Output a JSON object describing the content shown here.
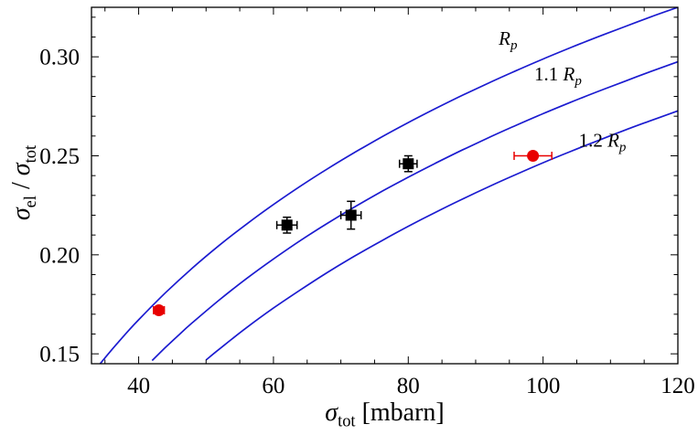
{
  "chart_data": {
    "type": "line",
    "title": "",
    "xlabel": "σ_tot [mbarn]",
    "ylabel": "σ_el / σ_tot",
    "axis_labels": {
      "x": {
        "sigma": "σ",
        "sub": "tot",
        "unit": " [mbarn]"
      },
      "y": {
        "sigma1": "σ",
        "sub1": "el",
        "sep": " / ",
        "sigma2": "σ",
        "sub2": "tot"
      }
    },
    "xlim": [
      33,
      120
    ],
    "ylim": [
      0.145,
      0.325
    ],
    "xticks": {
      "major": [
        40,
        60,
        80,
        100,
        120
      ],
      "labels": [
        "40",
        "60",
        "80",
        "100",
        "120"
      ],
      "minor_step": 5
    },
    "yticks": {
      "major": [
        0.15,
        0.2,
        0.25,
        0.3
      ],
      "labels": [
        "0.15",
        "0.20",
        "0.25",
        "0.30"
      ],
      "minor_step": 0.01
    },
    "frame": true,
    "grid": false,
    "legend_position": "none",
    "colors": {
      "curve": "#1b1bd0",
      "square_points": "#000000",
      "circle_points": "#e80000",
      "frame": "#000000",
      "background": "#ffffff"
    },
    "curves": [
      {
        "name": "R_p",
        "label": {
          "prefix": "",
          "base": "R",
          "sub": "p"
        },
        "label_pos": [
          94.8,
          0.306
        ],
        "points": [
          [
            34,
            0.1438
          ],
          [
            36,
            0.152
          ],
          [
            38,
            0.1598
          ],
          [
            40,
            0.1672
          ],
          [
            44,
            0.1809
          ],
          [
            48,
            0.1934
          ],
          [
            52,
            0.2049
          ],
          [
            56,
            0.2155
          ],
          [
            60,
            0.2254
          ],
          [
            64,
            0.2347
          ],
          [
            68,
            0.2434
          ],
          [
            72,
            0.2516
          ],
          [
            76,
            0.2594
          ],
          [
            80,
            0.2668
          ],
          [
            84,
            0.2738
          ],
          [
            88,
            0.2805
          ],
          [
            92,
            0.2869
          ],
          [
            96,
            0.293
          ],
          [
            100,
            0.2989
          ],
          [
            104,
            0.3045
          ],
          [
            108,
            0.3099
          ],
          [
            112,
            0.3151
          ],
          [
            116,
            0.3202
          ],
          [
            120,
            0.325
          ]
        ]
      },
      {
        "name": "1.1 R_p",
        "label": {
          "prefix": "1.1 ",
          "base": "R",
          "sub": "p"
        },
        "label_pos": [
          102.2,
          0.288
        ],
        "points": [
          [
            42,
            0.1466
          ],
          [
            44,
            0.1533
          ],
          [
            46,
            0.1597
          ],
          [
            48,
            0.1658
          ],
          [
            52,
            0.1773
          ],
          [
            56,
            0.188
          ],
          [
            60,
            0.1979
          ],
          [
            64,
            0.2072
          ],
          [
            68,
            0.2159
          ],
          [
            72,
            0.2241
          ],
          [
            76,
            0.2319
          ],
          [
            80,
            0.2392
          ],
          [
            84,
            0.2462
          ],
          [
            88,
            0.2529
          ],
          [
            92,
            0.2593
          ],
          [
            96,
            0.2654
          ],
          [
            100,
            0.2713
          ],
          [
            104,
            0.2769
          ],
          [
            108,
            0.2823
          ],
          [
            112,
            0.2875
          ],
          [
            116,
            0.2926
          ],
          [
            120,
            0.2975
          ]
        ]
      },
      {
        "name": "1.2 R_p",
        "label": {
          "prefix": "1.2 ",
          "base": "R",
          "sub": "p"
        },
        "label_pos": [
          108.8,
          0.2545
        ],
        "points": [
          [
            50,
            0.1469
          ],
          [
            52,
            0.1525
          ],
          [
            56,
            0.1632
          ],
          [
            60,
            0.1731
          ],
          [
            64,
            0.1823
          ],
          [
            68,
            0.1911
          ],
          [
            72,
            0.1993
          ],
          [
            76,
            0.207
          ],
          [
            80,
            0.2144
          ],
          [
            84,
            0.2214
          ],
          [
            88,
            0.2281
          ],
          [
            92,
            0.2345
          ],
          [
            96,
            0.2406
          ],
          [
            100,
            0.2465
          ],
          [
            104,
            0.2521
          ],
          [
            108,
            0.2575
          ],
          [
            112,
            0.2628
          ],
          [
            116,
            0.2678
          ],
          [
            120,
            0.2727
          ]
        ]
      }
    ],
    "data_points": [
      {
        "series": "black_squares",
        "marker": "square",
        "color": "#000000",
        "points": [
          {
            "x": 62,
            "y": 0.215,
            "xerr": 1.5,
            "yerr": 0.004
          },
          {
            "x": 71.5,
            "y": 0.22,
            "xerr": 1.5,
            "yerr": 0.007
          },
          {
            "x": 80,
            "y": 0.246,
            "xerr": 1.3,
            "yerr": 0.004
          }
        ]
      },
      {
        "series": "red_circles",
        "marker": "circle",
        "color": "#e80000",
        "points": [
          {
            "x": 43,
            "y": 0.172,
            "xerr": 0.8,
            "yerr": 0
          },
          {
            "x": 98.5,
            "y": 0.25,
            "xerr": 2.8,
            "yerr": 0
          }
        ]
      }
    ]
  }
}
